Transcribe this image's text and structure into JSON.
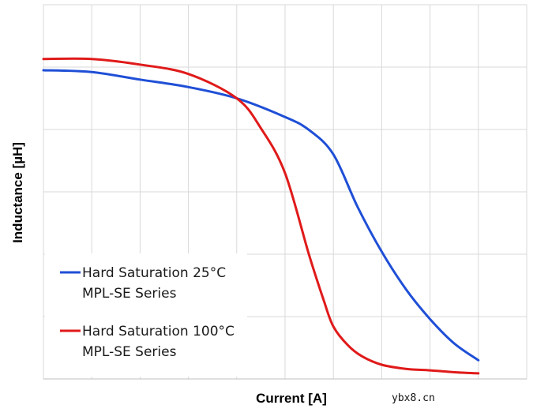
{
  "chart_data": {
    "type": "line",
    "title": "",
    "xlabel": "Current [A]",
    "ylabel": "Inductance [µH]",
    "xlim": [
      0,
      10
    ],
    "ylim": [
      0,
      100
    ],
    "grid": true,
    "x_gridlines": 10,
    "y_gridlines": 6,
    "legend_position": "bottom-left",
    "series": [
      {
        "name": "Hard Saturation 25°C",
        "name_line2": "MPL-SE Series",
        "color": "#1f4fd6",
        "x": [
          0,
          1,
          2,
          3,
          4,
          5,
          5.5,
          6,
          6.5,
          7,
          7.5,
          8,
          8.5,
          9
        ],
        "y": [
          82.5,
          82,
          80,
          78,
          75,
          70,
          66.5,
          60,
          46,
          34,
          24,
          16,
          9.5,
          5
        ]
      },
      {
        "name": "Hard Saturation 100°C",
        "name_line2": "MPL-SE Series",
        "color": "#e01a1a",
        "x": [
          0,
          1,
          2,
          3,
          4,
          4.5,
          5,
          5.5,
          5.8,
          6,
          6.3,
          6.6,
          7,
          7.5,
          8,
          8.5,
          9
        ],
        "y": [
          85.5,
          85.5,
          84,
          81.5,
          75,
          67,
          55,
          33,
          21,
          14,
          9,
          6,
          3.8,
          2.7,
          2.3,
          1.8,
          1.5
        ]
      }
    ]
  },
  "watermark": "ybx8.cn"
}
